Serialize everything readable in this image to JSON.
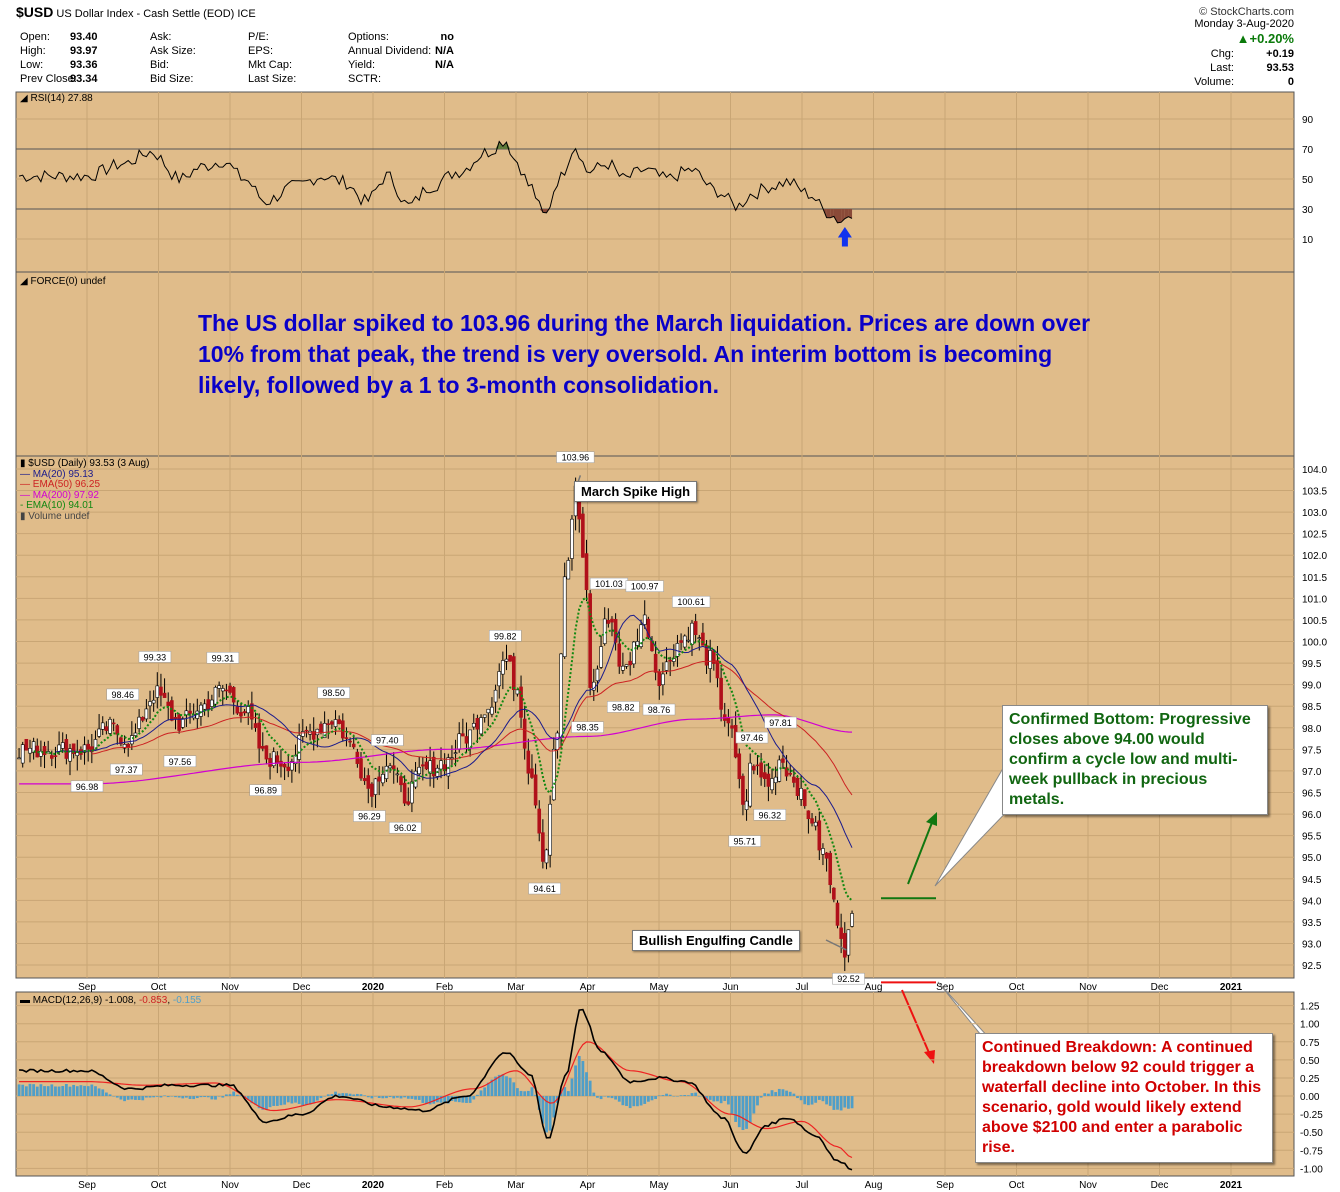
{
  "header": {
    "symbol": "$USD",
    "title": "US Dollar Index - Cash Settle (EOD)",
    "exchange": "ICE",
    "source": "© StockCharts.com",
    "date": "Monday  3-Aug-2020",
    "change_pct": "▲+0.20%",
    "quote_fields": [
      {
        "label": "Open:",
        "value": "93.40"
      },
      {
        "label": "High:",
        "value": "93.97"
      },
      {
        "label": "Low:",
        "value": "93.36"
      },
      {
        "label": "Prev Close:",
        "value": "93.34"
      },
      {
        "label": "Ask:",
        "value": ""
      },
      {
        "label": "Ask Size:",
        "value": ""
      },
      {
        "label": "Bid:",
        "value": ""
      },
      {
        "label": "Bid Size:",
        "value": ""
      },
      {
        "label": "P/E:",
        "value": ""
      },
      {
        "label": "EPS:",
        "value": ""
      },
      {
        "label": "Mkt Cap:",
        "value": ""
      },
      {
        "label": "Last Size:",
        "value": ""
      },
      {
        "label": "Options:",
        "value": "no"
      },
      {
        "label": "Annual Dividend:",
        "value": "N/A"
      },
      {
        "label": "Yield:",
        "value": "N/A"
      },
      {
        "label": "SCTR:",
        "value": ""
      }
    ],
    "right_fields": [
      {
        "label": "Chg:",
        "value": "+0.19"
      },
      {
        "label": "Last:",
        "value": "93.53"
      },
      {
        "label": "Volume:",
        "value": "0"
      }
    ]
  },
  "panels": {
    "rsi_label": "RSI(14) 27.88",
    "force_label": "FORCE(0) undef",
    "price_legend": [
      {
        "text": "$USD (Daily) 93.53 (3 Aug)",
        "color": "#000000"
      },
      {
        "text": "MA(20) 95.13",
        "color": "#1b1b8c"
      },
      {
        "text": "EMA(50) 96.25",
        "color": "#cc2222"
      },
      {
        "text": "MA(200) 97.92",
        "color": "#d100d1"
      },
      {
        "text": "EMA(10) 94.01",
        "color": "#118811"
      },
      {
        "text": "Volume undef",
        "color": "#444444"
      }
    ],
    "macd_label": "MACD(12,26,9)",
    "macd_values": [
      "-1.008",
      "-0.853",
      "-0.155"
    ]
  },
  "annotations": {
    "headline": "The US dollar spiked to 103.96 during the March liquidation. Prices are down over 10% from that peak, the trend is very oversold. An interim bottom is becoming likely, followed by a 1 to 3-month consolidation.",
    "march_spike": "March Spike High",
    "bullish_engulfing": "Bullish Engulfing Candle",
    "confirmed_bottom": "Confirmed Bottom: Progressive closes above 94.00 would confirm a cycle low and multi-week pullback in precious metals.",
    "continued_breakdown": "Continued Breakdown: A continued breakdown below 92 could trigger a waterfall decline into October. In this scenario, gold would likely extend above $2100 and enter a parabolic rise."
  },
  "colors": {
    "panel_bg": "#e0bc8a",
    "grid": "#c9a675",
    "candle": "#b0101a",
    "ma20": "#1b1b8c",
    "ema50": "#cc2222",
    "ma200": "#d100d1",
    "ema10": "#118811",
    "macd_hist": "#4f9ec8",
    "headline": "#0a00c8",
    "confirm_text": "#116611",
    "breakdown_text": "#d00000"
  },
  "chart_data": {
    "type": "candlestick",
    "x_months": [
      "Sep",
      "Oct",
      "Nov",
      "Dec",
      "2020",
      "Feb",
      "Mar",
      "Apr",
      "May",
      "Jun",
      "Jul",
      "Aug",
      "Sep",
      "Oct",
      "Nov",
      "Dec",
      "2021"
    ],
    "price_axis": {
      "ticks": [
        "104.0",
        "103.5",
        "103.0",
        "102.5",
        "102.0",
        "101.5",
        "101.0",
        "100.5",
        "100.0",
        "99.5",
        "99.0",
        "98.5",
        "98.0",
        "97.5",
        "97.0",
        "96.5",
        "96.0",
        "95.5",
        "95.0",
        "94.5",
        "94.0",
        "93.5",
        "93.0",
        "92.5"
      ],
      "range": [
        92.2,
        104.3
      ]
    },
    "rsi_axis": {
      "ticks": [
        "90",
        "70",
        "50",
        "30",
        "10"
      ],
      "range": [
        0,
        100
      ],
      "overbought": 70,
      "oversold": 30
    },
    "macd_axis": {
      "ticks": [
        "1.25",
        "1.00",
        "0.75",
        "0.50",
        "0.25",
        "0.00",
        "-0.25",
        "-0.50",
        "-0.75",
        "-1.00"
      ],
      "range": [
        -1.05,
        1.3
      ]
    },
    "peak_labels": [
      {
        "text": "96.98",
        "m": 0.0,
        "v": 96.98,
        "pos": "below"
      },
      {
        "text": "98.46",
        "m": 0.5,
        "v": 98.46,
        "pos": "above"
      },
      {
        "text": "97.37",
        "m": 0.55,
        "v": 97.37,
        "pos": "below"
      },
      {
        "text": "99.33",
        "m": 0.95,
        "v": 99.33,
        "pos": "above"
      },
      {
        "text": "97.56",
        "m": 1.3,
        "v": 97.56,
        "pos": "below"
      },
      {
        "text": "99.31",
        "m": 1.9,
        "v": 99.31,
        "pos": "above"
      },
      {
        "text": "96.89",
        "m": 2.5,
        "v": 96.89,
        "pos": "below"
      },
      {
        "text": "98.50",
        "m": 3.45,
        "v": 98.5,
        "pos": "above"
      },
      {
        "text": "96.29",
        "m": 3.95,
        "v": 96.29,
        "pos": "below"
      },
      {
        "text": "97.40",
        "m": 4.2,
        "v": 97.4,
        "pos": "above"
      },
      {
        "text": "96.02",
        "m": 4.45,
        "v": 96.02,
        "pos": "below"
      },
      {
        "text": "99.82",
        "m": 5.85,
        "v": 99.82,
        "pos": "above"
      },
      {
        "text": "94.61",
        "m": 6.4,
        "v": 94.61,
        "pos": "below"
      },
      {
        "text": "103.96",
        "m": 6.83,
        "v": 103.96,
        "pos": "above"
      },
      {
        "text": "98.35",
        "m": 7.0,
        "v": 98.35,
        "pos": "below"
      },
      {
        "text": "101.03",
        "m": 7.3,
        "v": 101.03,
        "pos": "above"
      },
      {
        "text": "98.82",
        "m": 7.5,
        "v": 98.82,
        "pos": "below"
      },
      {
        "text": "100.97",
        "m": 7.8,
        "v": 100.97,
        "pos": "above"
      },
      {
        "text": "98.76",
        "m": 8.0,
        "v": 98.76,
        "pos": "below"
      },
      {
        "text": "100.61",
        "m": 8.45,
        "v": 100.61,
        "pos": "above"
      },
      {
        "text": "95.71",
        "m": 9.2,
        "v": 95.71,
        "pos": "below"
      },
      {
        "text": "97.46",
        "m": 9.3,
        "v": 97.46,
        "pos": "above"
      },
      {
        "text": "96.32",
        "m": 9.55,
        "v": 96.32,
        "pos": "below"
      },
      {
        "text": "97.81",
        "m": 9.7,
        "v": 97.81,
        "pos": "above"
      },
      {
        "text": "92.52",
        "m": 10.65,
        "v": 92.52,
        "pos": "below"
      }
    ],
    "close_keypoints": [
      [
        0.0,
        97.5
      ],
      [
        0.3,
        98.0
      ],
      [
        0.6,
        97.7
      ],
      [
        0.95,
        98.8
      ],
      [
        1.3,
        98.1
      ],
      [
        1.6,
        98.5
      ],
      [
        1.9,
        98.9
      ],
      [
        2.2,
        98.4
      ],
      [
        2.5,
        97.3
      ],
      [
        2.8,
        97.2
      ],
      [
        3.1,
        97.9
      ],
      [
        3.45,
        98.2
      ],
      [
        3.7,
        97.6
      ],
      [
        3.95,
        96.6
      ],
      [
        4.2,
        97.2
      ],
      [
        4.45,
        96.4
      ],
      [
        4.7,
        97.0
      ],
      [
        5.0,
        97.2
      ],
      [
        5.3,
        97.8
      ],
      [
        5.6,
        98.5
      ],
      [
        5.85,
        99.6
      ],
      [
        6.0,
        99.0
      ],
      [
        6.2,
        97.0
      ],
      [
        6.4,
        95.0
      ],
      [
        6.55,
        97.5
      ],
      [
        6.7,
        101.5
      ],
      [
        6.83,
        103.5
      ],
      [
        6.95,
        102.0
      ],
      [
        7.05,
        98.9
      ],
      [
        7.3,
        100.6
      ],
      [
        7.5,
        99.3
      ],
      [
        7.8,
        100.5
      ],
      [
        8.0,
        99.2
      ],
      [
        8.3,
        100.0
      ],
      [
        8.45,
        100.3
      ],
      [
        8.7,
        99.6
      ],
      [
        8.95,
        98.2
      ],
      [
        9.2,
        96.2
      ],
      [
        9.3,
        97.2
      ],
      [
        9.45,
        96.8
      ],
      [
        9.55,
        96.7
      ],
      [
        9.7,
        97.3
      ],
      [
        9.85,
        96.9
      ],
      [
        10.1,
        96.0
      ],
      [
        10.3,
        95.1
      ],
      [
        10.5,
        93.6
      ],
      [
        10.6,
        92.9
      ],
      [
        10.7,
        93.53
      ]
    ],
    "ma200_keypoints": [
      [
        0.0,
        96.7
      ],
      [
        3.0,
        97.2
      ],
      [
        5.0,
        97.5
      ],
      [
        7.0,
        97.8
      ],
      [
        8.5,
        98.2
      ],
      [
        9.6,
        98.3
      ],
      [
        10.7,
        97.9
      ]
    ],
    "rsi_keypoints": [
      [
        0.0,
        52
      ],
      [
        0.5,
        60
      ],
      [
        0.9,
        68
      ],
      [
        1.3,
        50
      ],
      [
        1.6,
        58
      ],
      [
        1.9,
        62
      ],
      [
        2.2,
        50
      ],
      [
        2.5,
        35
      ],
      [
        2.9,
        45
      ],
      [
        3.3,
        52
      ],
      [
        3.6,
        48
      ],
      [
        3.9,
        35
      ],
      [
        4.2,
        52
      ],
      [
        4.5,
        32
      ],
      [
        4.8,
        45
      ],
      [
        5.2,
        55
      ],
      [
        5.6,
        68
      ],
      [
        5.85,
        76
      ],
      [
        6.0,
        62
      ],
      [
        6.2,
        45
      ],
      [
        6.4,
        25
      ],
      [
        6.6,
        50
      ],
      [
        6.83,
        72
      ],
      [
        7.0,
        55
      ],
      [
        7.3,
        60
      ],
      [
        7.5,
        50
      ],
      [
        7.8,
        56
      ],
      [
        8.1,
        50
      ],
      [
        8.45,
        56
      ],
      [
        8.8,
        42
      ],
      [
        9.1,
        32
      ],
      [
        9.3,
        40
      ],
      [
        9.55,
        45
      ],
      [
        9.8,
        48
      ],
      [
        10.1,
        40
      ],
      [
        10.35,
        28
      ],
      [
        10.55,
        22
      ],
      [
        10.7,
        28
      ]
    ],
    "macd_keypoints": [
      [
        0.0,
        0.35
      ],
      [
        0.6,
        0.1
      ],
      [
        1.2,
        0.15
      ],
      [
        2.0,
        0.15
      ],
      [
        2.5,
        -0.35
      ],
      [
        3.0,
        -0.25
      ],
      [
        3.5,
        0.0
      ],
      [
        4.2,
        -0.15
      ],
      [
        4.7,
        -0.2
      ],
      [
        5.3,
        0.0
      ],
      [
        5.85,
        0.6
      ],
      [
        6.2,
        0.3
      ],
      [
        6.45,
        -0.6
      ],
      [
        6.7,
        0.3
      ],
      [
        6.9,
        1.2
      ],
      [
        7.2,
        0.6
      ],
      [
        7.6,
        0.2
      ],
      [
        8.0,
        0.25
      ],
      [
        8.4,
        0.2
      ],
      [
        8.9,
        -0.3
      ],
      [
        9.2,
        -0.8
      ],
      [
        9.5,
        -0.4
      ],
      [
        9.8,
        -0.3
      ],
      [
        10.2,
        -0.55
      ],
      [
        10.5,
        -0.9
      ],
      [
        10.7,
        -1.0
      ]
    ],
    "macd_signal_keypoints": [
      [
        0.0,
        0.2
      ],
      [
        0.8,
        0.15
      ],
      [
        1.8,
        0.18
      ],
      [
        2.6,
        -0.2
      ],
      [
        3.5,
        -0.05
      ],
      [
        4.5,
        -0.15
      ],
      [
        5.4,
        0.1
      ],
      [
        6.0,
        0.35
      ],
      [
        6.5,
        -0.1
      ],
      [
        7.0,
        0.75
      ],
      [
        7.6,
        0.35
      ],
      [
        8.3,
        0.2
      ],
      [
        9.0,
        -0.25
      ],
      [
        9.5,
        -0.45
      ],
      [
        10.0,
        -0.35
      ],
      [
        10.5,
        -0.7
      ],
      [
        10.7,
        -0.85
      ]
    ]
  }
}
